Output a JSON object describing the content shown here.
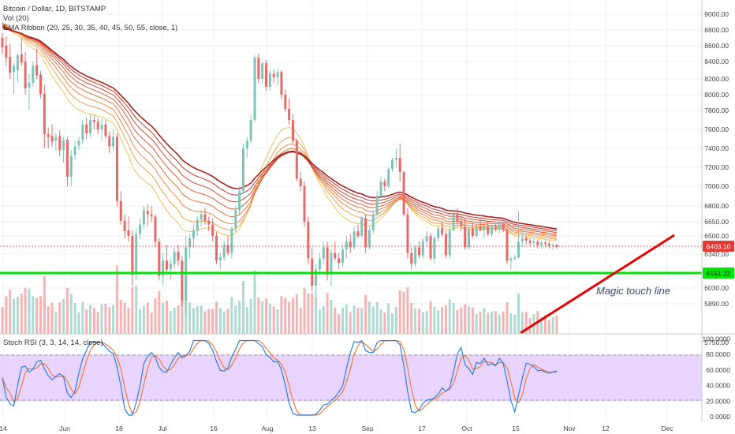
{
  "colors": {
    "up": "#7fc4b8",
    "down": "#e56a6a",
    "vol_up": "#9fd3ca",
    "vol_down": "#f2a7a7",
    "support_line": "#00e600",
    "trend_line": "#e60000",
    "rsi_band": "#e2c6ff",
    "stoch_k": "#2a7fe8",
    "stoch_d": "#f07a38",
    "price_tag": "#e53935",
    "ribbon": [
      "#f5d76e",
      "#f4c35c",
      "#f2a24e",
      "#ee8a46",
      "#e8733f",
      "#e05e39",
      "#d44a33",
      "#c6382d",
      "#a8221f"
    ]
  },
  "legend": {
    "symbol": "Bitcoin / Dollar, 1D, BITSTAMP",
    "volume": "Vol (20)",
    "ema": "EMA Ribbon (20, 25, 30, 35, 40, 45, 50, 55, close, 1)",
    "stoch": "Stoch RSI (3, 3, 14, 14, close)"
  },
  "annotations": {
    "magic_line_label": "Magic touch line",
    "current_price_tag": "6403.10",
    "support_price_tag": "6151.22"
  },
  "chart_data": {
    "type": "candlestick",
    "price_axis": {
      "ticks": [
        {
          "label": "9000.00",
          "value": 9000
        },
        {
          "label": "8800.00",
          "value": 8800
        },
        {
          "label": "8600.00",
          "value": 8600
        },
        {
          "label": "8400.00",
          "value": 8400
        },
        {
          "label": "8200.00",
          "value": 8200
        },
        {
          "label": "8000.00",
          "value": 8000
        },
        {
          "label": "7800.00",
          "value": 7800
        },
        {
          "label": "7600.00",
          "value": 7600
        },
        {
          "label": "7400.00",
          "value": 7400
        },
        {
          "label": "7200.00",
          "value": 7200
        },
        {
          "label": "7000.00",
          "value": 7000
        },
        {
          "label": "6800.00",
          "value": 6800
        },
        {
          "label": "6650.00",
          "value": 6650
        },
        {
          "label": "6500.00",
          "value": 6500
        },
        {
          "label": "6340.00",
          "value": 6340
        },
        {
          "label": "6030.00",
          "value": 6030
        },
        {
          "label": "5890.00",
          "value": 5890
        },
        {
          "label": "5750.00",
          "value": 5750
        }
      ]
    },
    "x_axis": {
      "labels": [
        "14",
        "Jun",
        "18",
        "Jul",
        "16",
        "Aug",
        "13",
        "Sep",
        "17",
        "Oct",
        "15",
        "Nov",
        "12",
        "Dec"
      ]
    },
    "stoch_axis": {
      "ticks": [
        {
          "label": "100.0000",
          "value": 100
        },
        {
          "label": "80.0000",
          "value": 80
        },
        {
          "label": "60.0000",
          "value": 60
        },
        {
          "label": "40.0000",
          "value": 40
        },
        {
          "label": "20.0000",
          "value": 20
        },
        {
          "label": "0.0000",
          "value": 0
        }
      ],
      "band": [
        20,
        80
      ]
    },
    "ohlc": [
      [
        8700,
        8760,
        8500,
        8580
      ],
      [
        8600,
        8720,
        8350,
        8450
      ],
      [
        8460,
        8620,
        8200,
        8270
      ],
      [
        8280,
        8380,
        8010,
        8350
      ],
      [
        8300,
        8500,
        8150,
        8480
      ],
      [
        8490,
        8700,
        8350,
        8390
      ],
      [
        8400,
        8520,
        8000,
        8080
      ],
      [
        8090,
        8260,
        7800,
        8150
      ],
      [
        8150,
        8400,
        8100,
        8350
      ],
      [
        8360,
        8560,
        8200,
        8240
      ],
      [
        8250,
        8290,
        7950,
        8010
      ],
      [
        8010,
        8120,
        7400,
        7550
      ],
      [
        7550,
        7620,
        7400,
        7520
      ],
      [
        7530,
        7650,
        7420,
        7470
      ],
      [
        7480,
        7560,
        7380,
        7520
      ],
      [
        7530,
        7590,
        7320,
        7380
      ],
      [
        7380,
        7520,
        7250,
        7480
      ],
      [
        7490,
        7520,
        7000,
        7100
      ],
      [
        7100,
        7380,
        7000,
        7320
      ],
      [
        7330,
        7480,
        7280,
        7420
      ],
      [
        7430,
        7520,
        7380,
        7480
      ],
      [
        7490,
        7700,
        7450,
        7650
      ],
      [
        7650,
        7720,
        7500,
        7560
      ],
      [
        7560,
        7760,
        7520,
        7700
      ],
      [
        7700,
        7750,
        7600,
        7680
      ],
      [
        7680,
        7720,
        7550,
        7600
      ],
      [
        7600,
        7720,
        7480,
        7650
      ],
      [
        7650,
        7700,
        7500,
        7530
      ],
      [
        7530,
        7580,
        7350,
        7420
      ],
      [
        7420,
        7600,
        7380,
        7520
      ],
      [
        7520,
        7560,
        6800,
        6850
      ],
      [
        6850,
        6950,
        6620,
        6660
      ],
      [
        6660,
        6720,
        6480,
        6550
      ],
      [
        6560,
        6700,
        6450,
        6500
      ],
      [
        6500,
        6560,
        6050,
        6150
      ],
      [
        6150,
        6580,
        6100,
        6520
      ],
      [
        6520,
        6680,
        6470,
        6620
      ],
      [
        6620,
        6800,
        6580,
        6760
      ],
      [
        6750,
        6820,
        6600,
        6720
      ],
      [
        6720,
        6800,
        6650,
        6700
      ],
      [
        6700,
        6720,
        6400,
        6450
      ],
      [
        6450,
        6480,
        6100,
        6140
      ],
      [
        6140,
        6350,
        6060,
        6280
      ],
      [
        6280,
        6420,
        6150,
        6200
      ],
      [
        6200,
        6300,
        6100,
        6250
      ],
      [
        6250,
        6400,
        6200,
        6360
      ],
      [
        6360,
        6420,
        6230,
        6280
      ],
      [
        6280,
        6320,
        5880,
        5920
      ],
      [
        5920,
        6500,
        5850,
        6400
      ],
      [
        6400,
        6520,
        6300,
        6480
      ],
      [
        6480,
        6620,
        6400,
        6560
      ],
      [
        6560,
        6700,
        6500,
        6670
      ],
      [
        6670,
        6760,
        6600,
        6720
      ],
      [
        6720,
        6780,
        6620,
        6660
      ],
      [
        6660,
        6700,
        6550,
        6620
      ],
      [
        6620,
        6680,
        6450,
        6500
      ],
      [
        6500,
        6540,
        6250,
        6280
      ],
      [
        6280,
        6350,
        6200,
        6310
      ],
      [
        6310,
        6460,
        6280,
        6420
      ],
      [
        6420,
        6500,
        6330,
        6350
      ],
      [
        6350,
        6600,
        6300,
        6580
      ],
      [
        6580,
        6800,
        6540,
        6760
      ],
      [
        6760,
        7000,
        6720,
        6950
      ],
      [
        6950,
        7450,
        6920,
        7400
      ],
      [
        7400,
        7520,
        7300,
        7480
      ],
      [
        7480,
        7750,
        7450,
        7700
      ],
      [
        7700,
        8480,
        7680,
        8450
      ],
      [
        8450,
        8500,
        8150,
        8200
      ],
      [
        8200,
        8400,
        8150,
        8380
      ],
      [
        8380,
        8420,
        8050,
        8100
      ],
      [
        8100,
        8300,
        8050,
        8260
      ],
      [
        8260,
        8310,
        8150,
        8220
      ],
      [
        8220,
        8320,
        8120,
        8280
      ],
      [
        8280,
        8300,
        7950,
        8000
      ],
      [
        8000,
        8060,
        7780,
        7820
      ],
      [
        7820,
        7950,
        7650,
        7700
      ],
      [
        7700,
        7760,
        7450,
        7480
      ],
      [
        7480,
        7500,
        7050,
        7080
      ],
      [
        7080,
        7150,
        6950,
        7000
      ],
      [
        7000,
        7050,
        6600,
        6650
      ],
      [
        6650,
        6700,
        6250,
        6300
      ],
      [
        6300,
        6400,
        6000,
        6050
      ],
      [
        6050,
        6250,
        5950,
        6200
      ],
      [
        6200,
        6350,
        6150,
        6300
      ],
      [
        6300,
        6450,
        6250,
        6400
      ],
      [
        6400,
        6450,
        6100,
        6150
      ],
      [
        6150,
        6380,
        6050,
        6350
      ],
      [
        6350,
        6450,
        6280,
        6300
      ],
      [
        6300,
        6350,
        6200,
        6260
      ],
      [
        6260,
        6420,
        6220,
        6380
      ],
      [
        6380,
        6500,
        6300,
        6450
      ],
      [
        6450,
        6520,
        6350,
        6400
      ],
      [
        6400,
        6600,
        6380,
        6550
      ],
      [
        6550,
        6620,
        6480,
        6500
      ],
      [
        6500,
        6700,
        6480,
        6680
      ],
      [
        6680,
        6720,
        6350,
        6400
      ],
      [
        6400,
        6600,
        6380,
        6560
      ],
      [
        6560,
        6750,
        6520,
        6720
      ],
      [
        6720,
        6950,
        6700,
        6900
      ],
      [
        6900,
        7100,
        6880,
        7050
      ],
      [
        7050,
        7080,
        6950,
        7000
      ],
      [
        7000,
        7200,
        6980,
        7180
      ],
      [
        7180,
        7300,
        7150,
        7280
      ],
      [
        7280,
        7400,
        7200,
        7300
      ],
      [
        7300,
        7450,
        7050,
        7150
      ],
      [
        7150,
        7160,
        6700,
        6720
      ],
      [
        6720,
        6780,
        6300,
        6350
      ],
      [
        6350,
        6400,
        6200,
        6250
      ],
      [
        6250,
        6420,
        6220,
        6400
      ],
      [
        6400,
        6450,
        6300,
        6330
      ],
      [
        6330,
        6480,
        6300,
        6450
      ],
      [
        6450,
        6550,
        6400,
        6500
      ],
      [
        6500,
        6530,
        6280,
        6300
      ],
      [
        6300,
        6500,
        6250,
        6480
      ],
      [
        6480,
        6600,
        6450,
        6580
      ],
      [
        6580,
        6650,
        6500,
        6520
      ],
      [
        6520,
        6560,
        6300,
        6330
      ],
      [
        6330,
        6600,
        6300,
        6560
      ],
      [
        6560,
        6750,
        6550,
        6720
      ],
      [
        6720,
        6780,
        6600,
        6650
      ],
      [
        6650,
        6720,
        6550,
        6600
      ],
      [
        6600,
        6680,
        6380,
        6400
      ],
      [
        6400,
        6600,
        6380,
        6580
      ],
      [
        6580,
        6640,
        6480,
        6500
      ],
      [
        6500,
        6620,
        6480,
        6600
      ],
      [
        6600,
        6680,
        6550,
        6560
      ],
      [
        6560,
        6620,
        6480,
        6600
      ],
      [
        6600,
        6650,
        6500,
        6520
      ],
      [
        6520,
        6610,
        6490,
        6590
      ],
      [
        6590,
        6630,
        6550,
        6570
      ],
      [
        6570,
        6640,
        6530,
        6620
      ],
      [
        6620,
        6650,
        6540,
        6560
      ],
      [
        6560,
        6580,
        6250,
        6280
      ],
      [
        6280,
        6320,
        6200,
        6300
      ],
      [
        6300,
        6330,
        6280,
        6310
      ],
      [
        6310,
        6750,
        6300,
        6450
      ],
      [
        6450,
        6520,
        6400,
        6480
      ],
      [
        6480,
        6500,
        6420,
        6460
      ],
      [
        6460,
        6480,
        6410,
        6440
      ],
      [
        6440,
        6480,
        6400,
        6450
      ],
      [
        6450,
        6470,
        6390,
        6420
      ],
      [
        6420,
        6460,
        6390,
        6440
      ],
      [
        6440,
        6460,
        6400,
        6430
      ],
      [
        6430,
        6450,
        6390,
        6410
      ],
      [
        6410,
        6440,
        6380,
        6420
      ],
      [
        6420,
        6430,
        6390,
        6403
      ]
    ]
  }
}
